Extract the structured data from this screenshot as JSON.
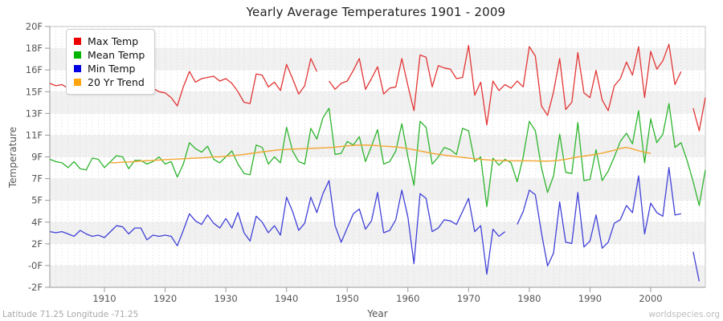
{
  "footer": {
    "caption": "Latitude 71.25 Longitude -71.25",
    "watermark": "worldspecies.org"
  },
  "colors": {
    "plot_band": "#f1f1f1",
    "grid_dashed": "#e2e2e2",
    "axis": "#999999",
    "border": "#c4c4c4",
    "tick_text": "#555555"
  },
  "chart_data": {
    "type": "line",
    "title": "Yearly Average Temperatures 1901 - 2009",
    "xlabel": "Year",
    "ylabel": "Temperature",
    "x_start": 1901,
    "x_end": 2009,
    "ylim": [
      -2,
      20
    ],
    "y_tick_labels": [
      "20F",
      "18F",
      "16F",
      "15F",
      "13F",
      "11F",
      "9F",
      "7F",
      "5F",
      "4F",
      "2F",
      "-0F",
      "-2F"
    ],
    "x_tick_years": [
      1910,
      1920,
      1930,
      1940,
      1950,
      1960,
      1970,
      1980,
      1990,
      2000
    ],
    "grid": "yearly dashed vertical lines, alternating horizontal bands",
    "legend_position": "top-left",
    "series": [
      {
        "name": "Max Temp",
        "color": "#e23535",
        "swatch": "#ee0000",
        "values": [
          15.2,
          15.0,
          15.1,
          14.8,
          14.6,
          15.1,
          14.7,
          14.4,
          14.4,
          14.3,
          14.9,
          15.3,
          15.4,
          14.7,
          15.2,
          15.4,
          14.5,
          14.8,
          14.5,
          14.4,
          14.0,
          13.3,
          14.9,
          16.2,
          15.3,
          15.6,
          15.7,
          15.8,
          15.4,
          15.6,
          15.2,
          14.5,
          13.6,
          13.5,
          16.0,
          15.9,
          14.9,
          15.3,
          14.6,
          16.8,
          15.6,
          14.3,
          15.0,
          17.3,
          16.2,
          null,
          15.4,
          14.7,
          15.2,
          15.4,
          16.3,
          17.3,
          14.7,
          15.6,
          16.6,
          14.3,
          14.8,
          14.9,
          17.3,
          15.0,
          12.9,
          17.6,
          17.4,
          14.9,
          16.7,
          16.5,
          16.4,
          15.6,
          15.7,
          18.4,
          14.2,
          15.3,
          11.7,
          15.4,
          14.6,
          15.1,
          14.8,
          15.4,
          14.9,
          18.3,
          17.5,
          13.3,
          12.5,
          14.5,
          17.3,
          13.0,
          13.6,
          17.8,
          14.4,
          14.0,
          16.3,
          13.8,
          12.9,
          15.0,
          15.6,
          17.0,
          15.9,
          18.3,
          14.0,
          17.9,
          16.4,
          17.1,
          18.5,
          15.1,
          16.2,
          null,
          13.1,
          11.2,
          14.0
        ]
      },
      {
        "name": "Mean Temp",
        "color": "#2db42d",
        "swatch": "#00b400",
        "values": [
          8.8,
          8.6,
          8.5,
          8.1,
          8.6,
          8.0,
          7.9,
          8.9,
          8.8,
          8.1,
          8.6,
          9.1,
          9.0,
          8.0,
          8.7,
          8.7,
          8.4,
          8.6,
          9.0,
          8.4,
          8.6,
          7.3,
          8.4,
          10.2,
          9.7,
          9.4,
          9.9,
          8.8,
          8.5,
          9.0,
          9.5,
          8.4,
          7.6,
          7.5,
          10.0,
          9.8,
          8.4,
          9.0,
          8.5,
          11.5,
          9.5,
          8.6,
          8.4,
          11.4,
          10.5,
          12.3,
          13.1,
          9.2,
          9.3,
          10.3,
          10.0,
          10.7,
          8.6,
          9.9,
          11.3,
          8.4,
          8.6,
          9.5,
          11.8,
          9.0,
          6.6,
          12.0,
          11.5,
          8.4,
          9.0,
          9.8,
          9.6,
          9.2,
          11.4,
          11.2,
          8.6,
          9.0,
          4.8,
          8.9,
          8.3,
          8.8,
          8.5,
          6.9,
          9.0,
          12.0,
          11.2,
          8.1,
          6.0,
          7.4,
          10.9,
          7.7,
          7.6,
          11.9,
          7.0,
          7.1,
          9.6,
          7.0,
          7.8,
          9.0,
          10.3,
          11.0,
          10.1,
          12.9,
          8.5,
          12.2,
          10.2,
          10.9,
          13.5,
          9.8,
          10.2,
          8.7,
          6.9,
          4.9,
          7.9
        ]
      },
      {
        "name": "Min Temp",
        "color": "#4040d8",
        "swatch": "#0000e0",
        "values": [
          2.7,
          2.6,
          2.7,
          2.5,
          2.3,
          2.8,
          2.5,
          2.3,
          2.4,
          2.2,
          2.7,
          3.2,
          3.1,
          2.5,
          3.0,
          3.0,
          2.0,
          2.4,
          2.3,
          2.4,
          2.3,
          1.5,
          2.8,
          4.2,
          3.6,
          3.3,
          4.1,
          3.4,
          3.0,
          3.8,
          3.0,
          4.3,
          2.6,
          1.9,
          4.0,
          3.5,
          2.6,
          3.2,
          2.4,
          5.6,
          4.4,
          2.8,
          3.4,
          5.6,
          4.3,
          5.9,
          7.0,
          3.2,
          1.8,
          3.0,
          4.2,
          4.6,
          2.9,
          3.6,
          6.0,
          2.6,
          2.8,
          3.7,
          6.2,
          3.9,
          0.0,
          5.9,
          5.5,
          2.7,
          3.0,
          3.7,
          3.6,
          3.3,
          4.4,
          5.5,
          2.7,
          3.2,
          -0.9,
          2.9,
          2.3,
          2.7,
          null,
          3.3,
          4.4,
          6.2,
          5.8,
          2.6,
          -0.2,
          0.9,
          5.2,
          1.8,
          1.7,
          6.0,
          1.4,
          1.9,
          4.1,
          1.3,
          1.8,
          3.4,
          3.7,
          4.9,
          4.3,
          7.4,
          2.5,
          5.1,
          4.3,
          4.0,
          8.1,
          4.1,
          4.2,
          null,
          1.0,
          -1.5,
          null
        ]
      },
      {
        "name": "20 Yr Trend",
        "color": "#f2a93b",
        "swatch": "#ffa510",
        "values": [
          null,
          null,
          null,
          null,
          null,
          null,
          null,
          null,
          null,
          null,
          8.5,
          8.52,
          8.55,
          8.57,
          8.6,
          8.65,
          8.68,
          8.7,
          8.73,
          8.76,
          8.8,
          8.82,
          8.85,
          8.87,
          8.9,
          8.92,
          8.95,
          9.0,
          9.0,
          9.05,
          9.1,
          9.15,
          9.2,
          9.28,
          9.35,
          9.42,
          9.48,
          9.55,
          9.6,
          9.63,
          9.66,
          9.68,
          9.7,
          9.72,
          9.74,
          9.76,
          9.78,
          9.82,
          9.88,
          9.93,
          9.97,
          10.0,
          10.0,
          9.98,
          9.95,
          9.91,
          9.88,
          9.84,
          9.78,
          9.7,
          9.6,
          9.5,
          9.4,
          9.3,
          9.22,
          9.15,
          9.08,
          9.02,
          8.96,
          8.9,
          8.85,
          8.8,
          8.75,
          8.72,
          8.7,
          8.68,
          8.67,
          8.67,
          8.68,
          8.67,
          8.66,
          8.65,
          8.65,
          8.67,
          8.72,
          8.8,
          8.9,
          9.0,
          9.06,
          9.14,
          9.22,
          9.32,
          9.44,
          9.56,
          9.72,
          9.8,
          9.68,
          9.52,
          9.4,
          9.3,
          null,
          null,
          null,
          null,
          null,
          null,
          null,
          null,
          null
        ]
      }
    ]
  }
}
